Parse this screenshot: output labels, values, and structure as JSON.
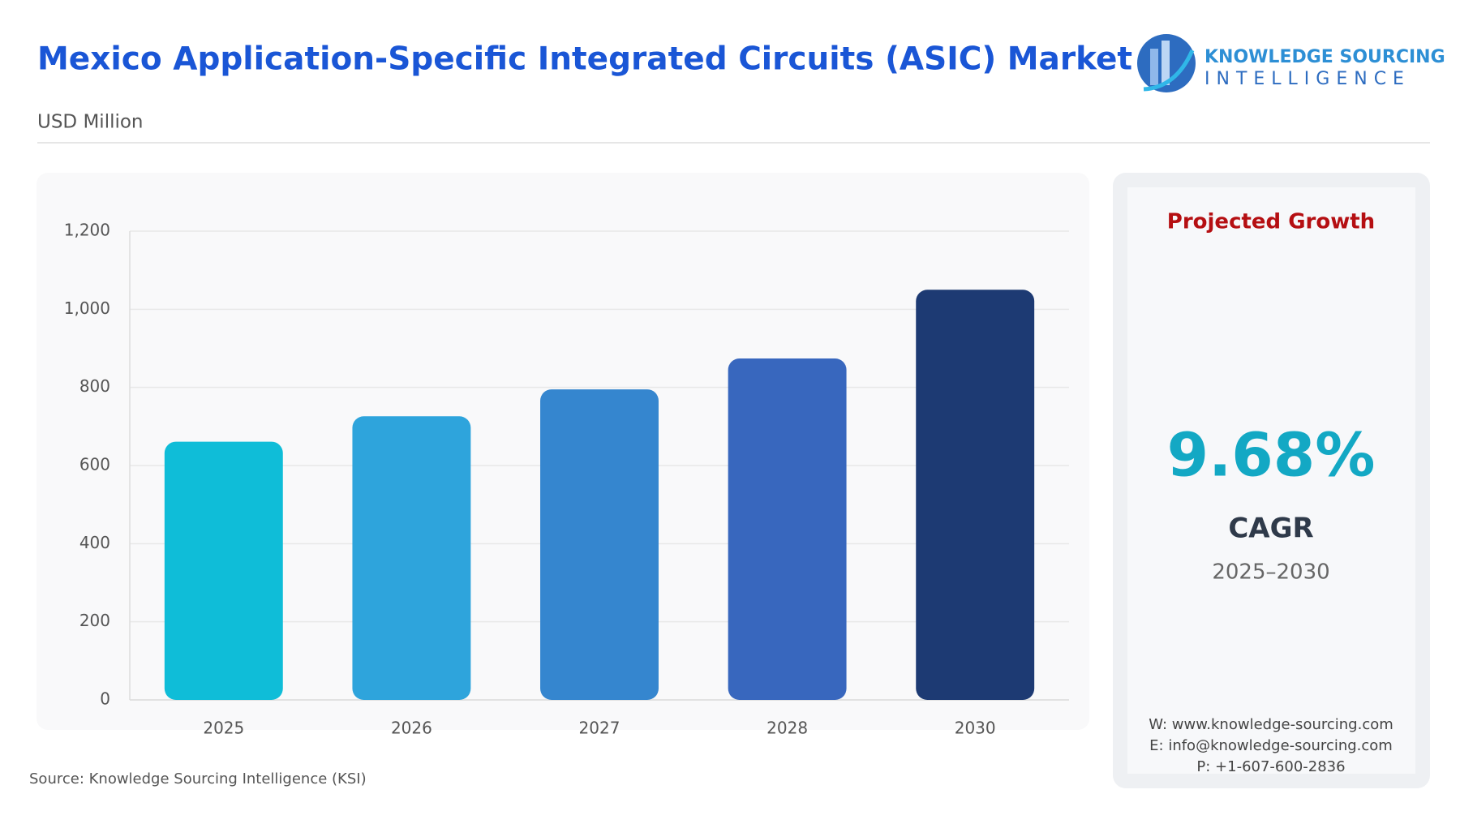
{
  "header": {
    "title": "Mexico Application-Specific Integrated Circuits (ASIC) Market",
    "subtitle": "USD Million",
    "logo": {
      "line1": "KNOWLEDGE SOURCING",
      "line2": "INTELLIGENCE"
    }
  },
  "chart_data": {
    "type": "bar",
    "categories": [
      "2025",
      "2026",
      "2027",
      "2028",
      "2030"
    ],
    "values": [
      661,
      726,
      795,
      874,
      1050
    ],
    "colors": [
      "#0fbdd8",
      "#2ea4dc",
      "#3586cf",
      "#3867be",
      "#1d3a73"
    ],
    "ylim": [
      0,
      1200
    ],
    "yticks": [
      0,
      200,
      400,
      600,
      800,
      {
        "value": 1000,
        "label": "1,000"
      },
      {
        "value": 1200,
        "label": "1,200"
      }
    ],
    "grid": true
  },
  "growth": {
    "heading": "Projected Growth",
    "value": "9.68%",
    "label": "CAGR",
    "period": "2025–2030",
    "contacts": [
      "W: www.knowledge-sourcing.com",
      "E: info@knowledge-sourcing.com",
      "P: +1-607-600-2836"
    ]
  },
  "source": "Source: Knowledge Sourcing Intelligence (KSI)"
}
